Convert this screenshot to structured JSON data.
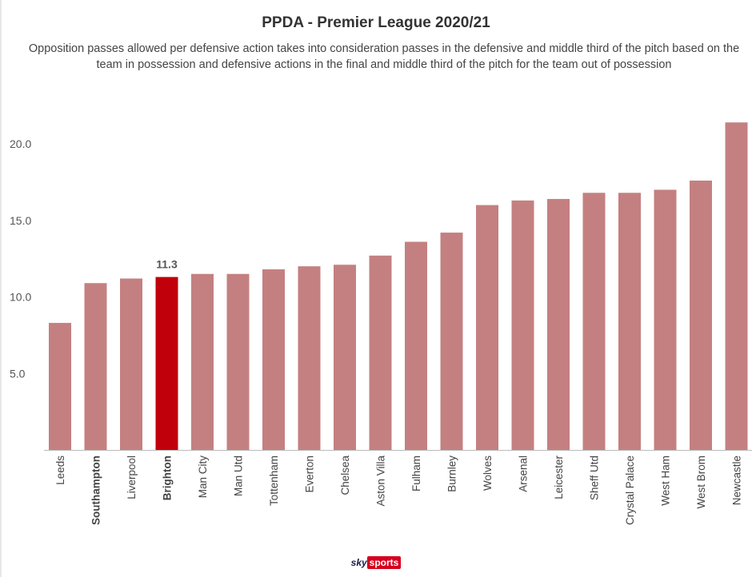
{
  "header": {
    "title": "PPDA - Premier League 2020/21",
    "subtitle": "Opposition passes allowed per defensive action takes into consideration passes in the defensive and middle third of the pitch based on the team in possession and defensive actions in the final and middle third of the pitch for the team out of possession"
  },
  "chart_data": {
    "type": "bar",
    "categories": [
      "Leeds",
      "Southampton",
      "Liverpool",
      "Brighton",
      "Man City",
      "Man Utd",
      "Tottenham",
      "Everton",
      "Chelsea",
      "Aston Villa",
      "Fulham",
      "Burnley",
      "Wolves",
      "Arsenal",
      "Leicester",
      "Sheff Utd",
      "Crystal Palace",
      "West Ham",
      "West Brom",
      "Newcastle"
    ],
    "values": [
      8.3,
      10.9,
      11.2,
      11.3,
      11.5,
      11.5,
      11.8,
      12.0,
      12.1,
      12.7,
      13.6,
      14.2,
      16.0,
      16.3,
      16.4,
      16.8,
      16.8,
      17.0,
      17.6,
      21.4
    ],
    "bold_categories": [
      "Southampton",
      "Brighton"
    ],
    "highlight_category": "Brighton",
    "highlight_label": "11.3",
    "y_ticks": [
      "5.0",
      "10.0",
      "15.0",
      "20.0"
    ],
    "ylim": [
      0,
      22
    ],
    "grid": false,
    "title": "PPDA - Premier League 2020/21",
    "colors": {
      "bar": "#c48080",
      "highlight": "#c0000b"
    }
  },
  "branding": {
    "sky": "sky",
    "sports": "sports"
  }
}
